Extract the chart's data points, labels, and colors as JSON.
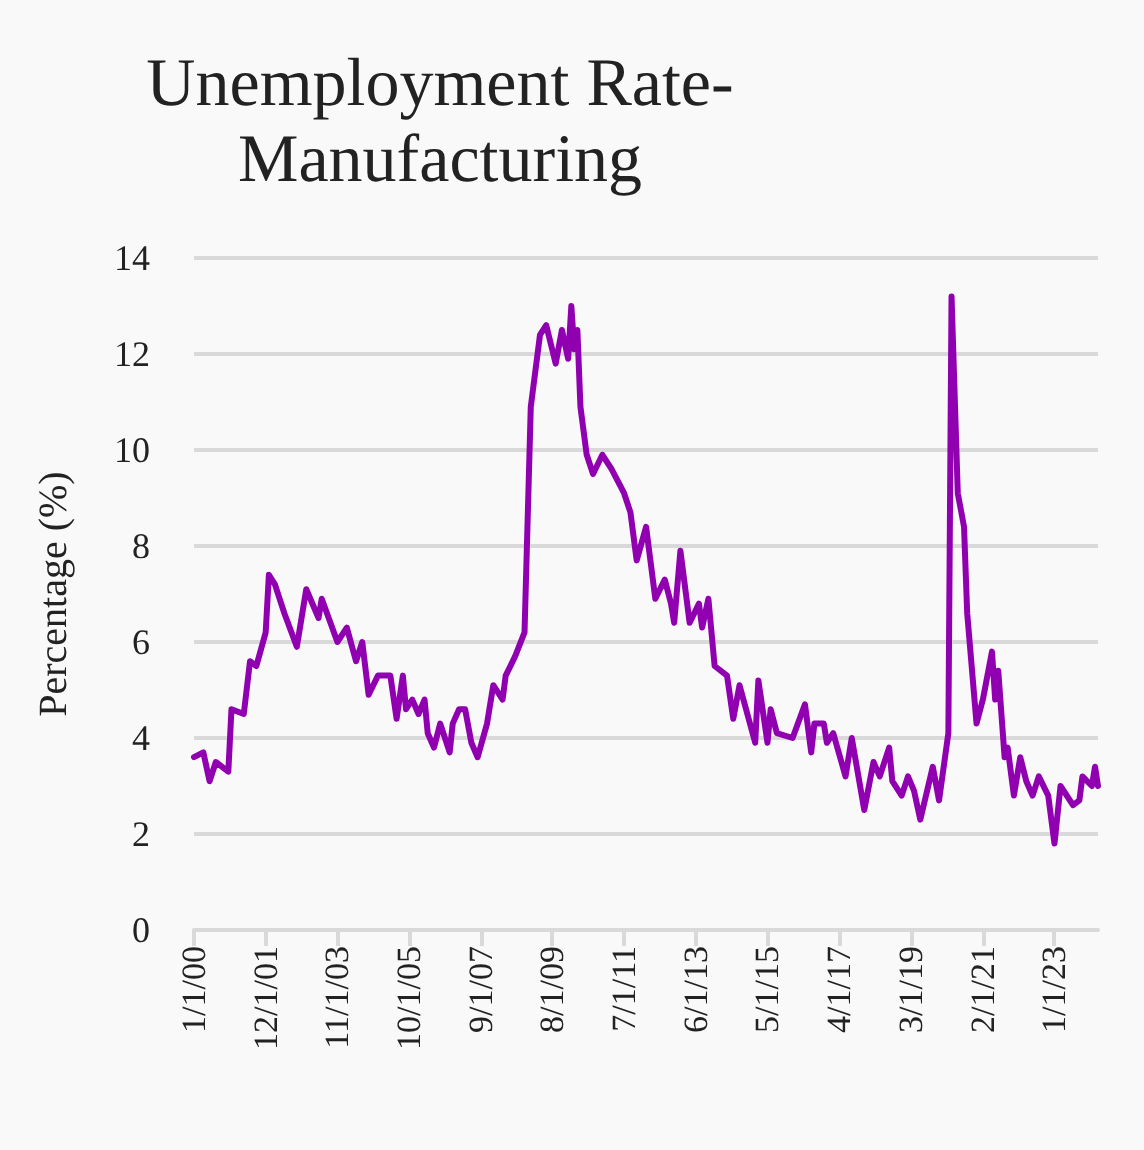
{
  "chart_data": {
    "type": "line",
    "title": "Unemployment Rate-Manufacturing",
    "ylabel": "Percentage (%)",
    "x": [
      "2000-01",
      "2000-04",
      "2000-06",
      "2000-08",
      "2000-12",
      "2001-01",
      "2001-05",
      "2001-07",
      "2001-09",
      "2001-12",
      "2002-01",
      "2002-03",
      "2002-06",
      "2002-10",
      "2003-01",
      "2003-05",
      "2003-06",
      "2003-11",
      "2004-02",
      "2004-05",
      "2004-07",
      "2004-09",
      "2004-12",
      "2005-04",
      "2005-06",
      "2005-08",
      "2005-09",
      "2005-11",
      "2006-01",
      "2006-03",
      "2006-04",
      "2006-06",
      "2006-08",
      "2006-11",
      "2006-12",
      "2007-02",
      "2007-04",
      "2007-06",
      "2007-08",
      "2007-11",
      "2008-01",
      "2008-04",
      "2008-05",
      "2008-08",
      "2008-11",
      "2009-01",
      "2009-04",
      "2009-06",
      "2009-09",
      "2009-11",
      "2010-01",
      "2010-02",
      "2010-03",
      "2010-04",
      "2010-05",
      "2010-07",
      "2010-09",
      "2010-12",
      "2011-03",
      "2011-07",
      "2011-09",
      "2011-11",
      "2012-02",
      "2012-05",
      "2012-08",
      "2012-10",
      "2012-11",
      "2013-01",
      "2013-04",
      "2013-07",
      "2013-08",
      "2013-10",
      "2013-12",
      "2014-04",
      "2014-06",
      "2014-08",
      "2015-01",
      "2015-02",
      "2015-05",
      "2015-06",
      "2015-08",
      "2016-01",
      "2016-05",
      "2016-07",
      "2016-08",
      "2016-11",
      "2016-12",
      "2017-02",
      "2017-06",
      "2017-08",
      "2017-12",
      "2018-03",
      "2018-05",
      "2018-08",
      "2018-09",
      "2018-12",
      "2019-02",
      "2019-04",
      "2019-06",
      "2019-10",
      "2019-12",
      "2020-03",
      "2020-04",
      "2020-06",
      "2020-08",
      "2020-09",
      "2020-12",
      "2021-02",
      "2021-05",
      "2021-06",
      "2021-07",
      "2021-09",
      "2021-10",
      "2021-12",
      "2022-02",
      "2022-04",
      "2022-06",
      "2022-08",
      "2022-11",
      "2023-01",
      "2023-03",
      "2023-07",
      "2023-09",
      "2023-10",
      "2024-01",
      "2024-02",
      "2024-03"
    ],
    "series": [
      {
        "color": "#9000b0",
        "values": [
          3.6,
          3.7,
          3.1,
          3.5,
          3.3,
          4.6,
          4.5,
          5.6,
          5.5,
          6.2,
          7.4,
          7.2,
          6.6,
          5.9,
          7.1,
          6.5,
          6.9,
          6.0,
          6.3,
          5.6,
          6.0,
          4.9,
          5.3,
          5.3,
          4.4,
          5.3,
          4.6,
          4.8,
          4.5,
          4.8,
          4.1,
          3.8,
          4.3,
          3.7,
          4.3,
          4.6,
          4.6,
          3.9,
          3.6,
          4.3,
          5.1,
          4.8,
          5.3,
          5.7,
          6.2,
          10.9,
          12.4,
          12.6,
          11.8,
          12.5,
          11.9,
          13.0,
          12.1,
          12.5,
          10.9,
          9.9,
          9.5,
          9.9,
          9.6,
          9.1,
          8.7,
          7.7,
          8.4,
          6.9,
          7.3,
          6.8,
          6.4,
          7.9,
          6.4,
          6.8,
          6.3,
          6.9,
          5.5,
          5.3,
          4.4,
          5.1,
          3.9,
          5.2,
          3.9,
          4.6,
          4.1,
          4.0,
          4.7,
          3.7,
          4.3,
          4.3,
          3.9,
          4.1,
          3.2,
          4.0,
          2.5,
          3.5,
          3.2,
          3.8,
          3.1,
          2.8,
          3.2,
          2.9,
          2.3,
          3.4,
          2.7,
          4.1,
          13.2,
          9.1,
          8.4,
          6.6,
          4.3,
          4.8,
          5.8,
          4.8,
          5.4,
          3.6,
          3.8,
          2.8,
          3.6,
          3.1,
          2.8,
          3.2,
          2.8,
          1.8,
          3.0,
          2.6,
          2.7,
          3.2,
          3.0,
          3.4,
          3.0
        ]
      }
    ],
    "xlim": [
      "2000-01",
      "2024-03"
    ],
    "xticks": [
      {
        "value": "2000-01",
        "label": "1/1/00"
      },
      {
        "value": "2001-12",
        "label": "12/1/01"
      },
      {
        "value": "2003-11",
        "label": "11/1/03"
      },
      {
        "value": "2005-10",
        "label": "10/1/05"
      },
      {
        "value": "2007-09",
        "label": "9/1/07"
      },
      {
        "value": "2009-08",
        "label": "8/1/09"
      },
      {
        "value": "2011-07",
        "label": "7/1/11"
      },
      {
        "value": "2013-06",
        "label": "6/1/13"
      },
      {
        "value": "2015-05",
        "label": "5/1/15"
      },
      {
        "value": "2017-04",
        "label": "4/1/17"
      },
      {
        "value": "2019-03",
        "label": "3/1/19"
      },
      {
        "value": "2021-02",
        "label": "2/1/21"
      },
      {
        "value": "2023-01",
        "label": "1/1/23"
      }
    ],
    "ylim": [
      0,
      14
    ],
    "yticks": [
      0,
      2,
      4,
      6,
      8,
      10,
      12,
      14
    ],
    "grid": "y",
    "marker": "none",
    "line_style": "solid"
  }
}
